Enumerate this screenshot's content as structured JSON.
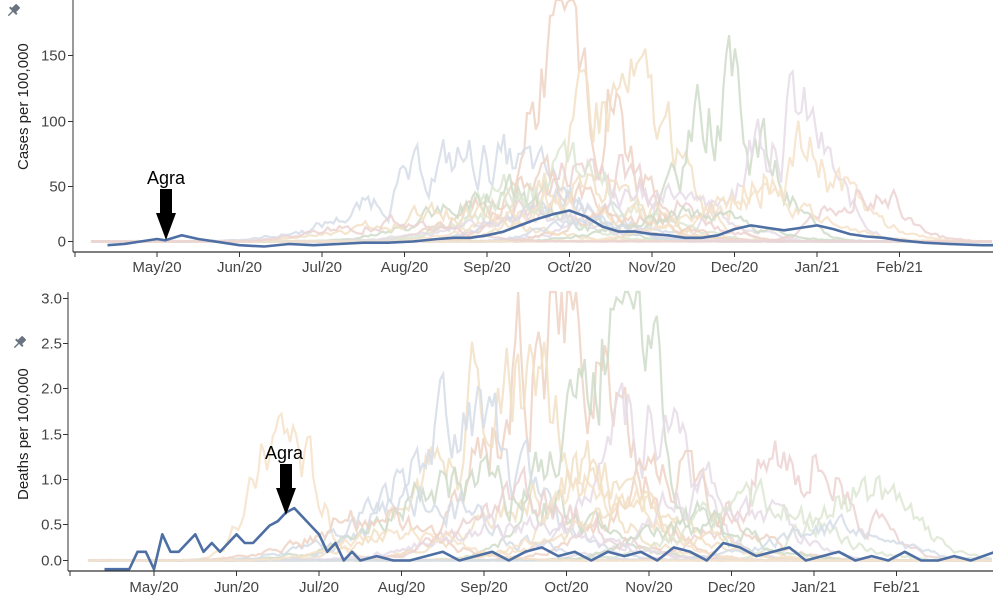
{
  "colors": {
    "highlight": "#4e6fa3",
    "background_palette": [
      "#efd4c4",
      "#f2e0c6",
      "#cfdcc9",
      "#e6dce8",
      "#d6dde8",
      "#f6e3ca",
      "#ecd2d2",
      "#dde6d3"
    ],
    "axis": "#333333",
    "pin_icon": "#6b7280"
  },
  "x_ticks": [
    "May/20",
    "Jun/20",
    "Jul/20",
    "Aug/20",
    "Sep/20",
    "Oct/20",
    "Nov/20",
    "Dec/20",
    "Jan/21",
    "Feb/21"
  ],
  "chart_data": [
    {
      "type": "line",
      "ylabel": "Cases per 100,000",
      "x_ticks": [
        "May/20",
        "Jun/20",
        "Jul/20",
        "Aug/20",
        "Sep/20",
        "Oct/20",
        "Nov/20",
        "Dec/20",
        "Jan/21",
        "Feb/21"
      ],
      "y_ticks": [
        "0",
        "50",
        "100",
        "150"
      ],
      "ylim": [
        -5,
        190
      ],
      "annotation": {
        "label": "Agra",
        "x": "May/20",
        "y": 5
      },
      "highlight_series": {
        "name": "Agra",
        "x": [
          -0.6,
          -0.4,
          -0.2,
          0.0,
          0.1,
          0.3,
          0.5,
          0.8,
          1.0,
          1.3,
          1.6,
          1.9,
          2.2,
          2.5,
          2.8,
          3.1,
          3.4,
          3.6,
          3.8,
          4.0,
          4.2,
          4.4,
          4.6,
          4.8,
          5.0,
          5.2,
          5.4,
          5.6,
          5.8,
          6.0,
          6.2,
          6.4,
          6.6,
          6.8,
          7.0,
          7.2,
          7.4,
          7.6,
          7.8,
          8.0,
          8.2,
          8.4,
          8.6,
          8.8,
          9.0,
          9.3,
          9.6,
          10.0,
          10.4
        ],
        "y": [
          -3,
          -2,
          0,
          2,
          1,
          5,
          2,
          -1,
          -3,
          -4,
          -2,
          -3,
          -2,
          -1,
          -1,
          0,
          2,
          3,
          3,
          5,
          8,
          13,
          18,
          22,
          25,
          20,
          12,
          8,
          8,
          6,
          5,
          3,
          3,
          5,
          10,
          13,
          11,
          9,
          11,
          13,
          10,
          6,
          4,
          3,
          1,
          -1,
          -2,
          -3,
          -3
        ]
      },
      "background_series_peaks": [
        {
          "center": 5.1,
          "width": 0.7,
          "peak": 190
        },
        {
          "center": 5.6,
          "width": 0.9,
          "peak": 125
        },
        {
          "center": 6.9,
          "width": 0.7,
          "peak": 118
        },
        {
          "center": 7.6,
          "width": 0.7,
          "peak": 108
        },
        {
          "center": 3.9,
          "width": 1.5,
          "peak": 65
        },
        {
          "center": 7.7,
          "width": 0.9,
          "peak": 72
        },
        {
          "center": 5.4,
          "width": 1.1,
          "peak": 60
        },
        {
          "center": 4.9,
          "width": 1.2,
          "peak": 55
        },
        {
          "center": 4.6,
          "width": 1.0,
          "peak": 48
        },
        {
          "center": 5.3,
          "width": 0.9,
          "peak": 45
        },
        {
          "center": 4.2,
          "width": 1.1,
          "peak": 40
        },
        {
          "center": 6.0,
          "width": 1.0,
          "peak": 38
        },
        {
          "center": 4.8,
          "width": 0.8,
          "peak": 35
        },
        {
          "center": 5.0,
          "width": 1.2,
          "peak": 30
        },
        {
          "center": 8.6,
          "width": 0.6,
          "peak": 45
        },
        {
          "center": 4.4,
          "width": 0.9,
          "peak": 28
        },
        {
          "center": 5.7,
          "width": 0.8,
          "peak": 26
        },
        {
          "center": 3.5,
          "width": 1.2,
          "peak": 24
        },
        {
          "center": 6.4,
          "width": 1.0,
          "peak": 22
        },
        {
          "center": 4.7,
          "width": 1.3,
          "peak": 20
        },
        {
          "center": 5.2,
          "width": 0.7,
          "peak": 18
        },
        {
          "center": 7.2,
          "width": 1.1,
          "peak": 30
        },
        {
          "center": 2.8,
          "width": 1.0,
          "peak": 15
        }
      ]
    },
    {
      "type": "line",
      "ylabel": "Deaths per 100,000",
      "x_ticks": [
        "May/20",
        "Jun/20",
        "Jul/20",
        "Aug/20",
        "Sep/20",
        "Oct/20",
        "Nov/20",
        "Dec/20",
        "Jan/21",
        "Feb/21"
      ],
      "y_ticks": [
        "0.0",
        "0.5",
        "1.0",
        "1.5",
        "2.0",
        "2.5",
        "3.0"
      ],
      "ylim": [
        -0.1,
        3.05
      ],
      "annotation": {
        "label": "Agra",
        "x": "Jun/20",
        "y": 0.6
      },
      "highlight_series": {
        "name": "Agra",
        "x": [
          -0.6,
          -0.3,
          -0.2,
          -0.1,
          0.0,
          0.1,
          0.2,
          0.3,
          0.4,
          0.5,
          0.6,
          0.7,
          0.8,
          0.9,
          1.0,
          1.1,
          1.2,
          1.3,
          1.4,
          1.5,
          1.6,
          1.7,
          1.8,
          1.9,
          2.0,
          2.1,
          2.2,
          2.3,
          2.4,
          2.5,
          2.7,
          2.9,
          3.1,
          3.3,
          3.5,
          3.7,
          3.9,
          4.1,
          4.3,
          4.5,
          4.7,
          4.9,
          5.1,
          5.3,
          5.5,
          5.7,
          5.9,
          6.1,
          6.3,
          6.5,
          6.7,
          6.9,
          7.1,
          7.3,
          7.5,
          7.7,
          7.9,
          8.1,
          8.3,
          8.5,
          8.7,
          8.9,
          9.1,
          9.3,
          9.5,
          9.7,
          9.9,
          10.2,
          10.5
        ],
        "y": [
          -0.1,
          -0.1,
          0.1,
          0.1,
          -0.1,
          0.3,
          0.1,
          0.1,
          0.2,
          0.3,
          0.1,
          0.2,
          0.1,
          0.2,
          0.3,
          0.2,
          0.2,
          0.3,
          0.4,
          0.45,
          0.55,
          0.6,
          0.5,
          0.4,
          0.3,
          0.1,
          0.2,
          0.0,
          0.1,
          0.0,
          0.05,
          0.0,
          0.0,
          0.05,
          0.1,
          0.0,
          0.05,
          0.1,
          0.0,
          0.1,
          0.15,
          0.05,
          0.1,
          0.0,
          0.1,
          0.05,
          0.1,
          0.0,
          0.15,
          0.1,
          0.0,
          0.2,
          0.15,
          0.05,
          0.1,
          0.15,
          0.0,
          0.05,
          0.1,
          0.0,
          0.05,
          0.0,
          0.1,
          0.0,
          0.0,
          0.05,
          0.0,
          0.1,
          0.0
        ]
      },
      "background_series_peaks": [
        {
          "center": 4.9,
          "width": 1.0,
          "peak": 2.9
        },
        {
          "center": 4.3,
          "width": 1.2,
          "peak": 2.0
        },
        {
          "center": 5.6,
          "width": 0.9,
          "peak": 2.6
        },
        {
          "center": 5.9,
          "width": 0.8,
          "peak": 1.7
        },
        {
          "center": 3.8,
          "width": 1.1,
          "peak": 1.5
        },
        {
          "center": 1.6,
          "width": 0.5,
          "peak": 1.5
        },
        {
          "center": 7.8,
          "width": 0.9,
          "peak": 1.3
        },
        {
          "center": 8.6,
          "width": 0.8,
          "peak": 0.8
        },
        {
          "center": 6.3,
          "width": 1.0,
          "peak": 1.0
        },
        {
          "center": 5.1,
          "width": 1.3,
          "peak": 0.95
        },
        {
          "center": 4.0,
          "width": 1.4,
          "peak": 0.9
        },
        {
          "center": 6.8,
          "width": 1.0,
          "peak": 0.8
        },
        {
          "center": 3.3,
          "width": 1.2,
          "peak": 0.7
        },
        {
          "center": 5.4,
          "width": 0.9,
          "peak": 0.75
        },
        {
          "center": 4.6,
          "width": 1.1,
          "peak": 0.65
        },
        {
          "center": 7.3,
          "width": 1.1,
          "peak": 0.6
        },
        {
          "center": 2.6,
          "width": 1.0,
          "peak": 0.5
        },
        {
          "center": 5.8,
          "width": 1.2,
          "peak": 0.5
        },
        {
          "center": 6.6,
          "width": 0.9,
          "peak": 0.45
        },
        {
          "center": 4.4,
          "width": 1.3,
          "peak": 0.4
        },
        {
          "center": 8.2,
          "width": 1.0,
          "peak": 0.35
        },
        {
          "center": 3.0,
          "width": 0.9,
          "peak": 0.3
        }
      ]
    }
  ]
}
